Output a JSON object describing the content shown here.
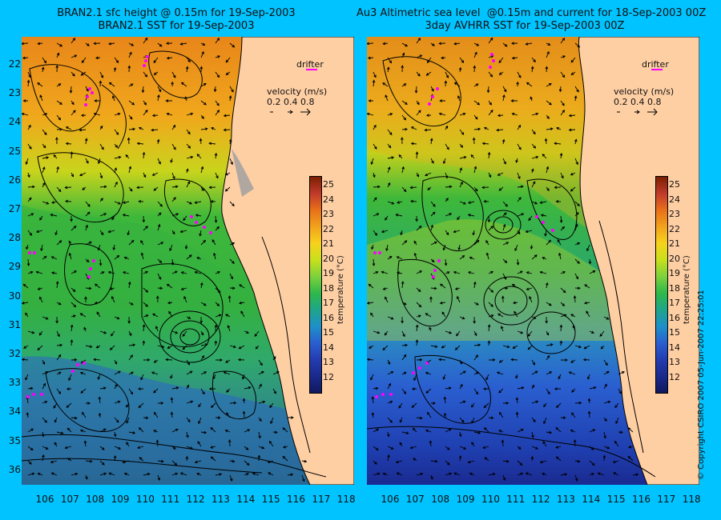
{
  "left_panel": {
    "title_line1": "BRAN2.1 sfc height @ 0.15m for 19-Sep-2003",
    "title_line2": "BRAN2.1 SST for 19-Sep-2003"
  },
  "right_panel": {
    "title_line1": "Au3 Altimetric sea level  @0.15m and current for 18-Sep-2003 00Z",
    "title_line2": "3day AVHRR SST for 19-Sep-2003 00Z"
  },
  "legend": {
    "drifter_label": "drifter",
    "velocity_label": "velocity (m/s)",
    "velocity_values": "0.2  0.4  0.8"
  },
  "colorbar": {
    "title": "temperature (°C)",
    "ticks": [
      "25",
      "24",
      "23",
      "22",
      "21",
      "20",
      "19",
      "18",
      "17",
      "16",
      "15",
      "14",
      "13",
      "12"
    ],
    "colors": [
      "#7a1f00",
      "#c0392b",
      "#e8701a",
      "#f2a21c",
      "#f7d21c",
      "#c8e01c",
      "#7dd13c",
      "#2fb84a",
      "#1fa58a",
      "#1e90c8",
      "#2a5fd0",
      "#243cb0",
      "#1a2a8c",
      "#10185e"
    ]
  },
  "axes": {
    "y_ticks": [
      "22",
      "23",
      "24",
      "25",
      "26",
      "27",
      "28",
      "29",
      "30",
      "31",
      "32",
      "33",
      "34",
      "35",
      "36"
    ],
    "x_ticks": [
      "106",
      "107",
      "108",
      "109",
      "110",
      "111",
      "112",
      "113",
      "114",
      "115",
      "116",
      "117",
      "118"
    ]
  },
  "copyright": "© Copyright CSIRO 2007   05-Jun-2007 22:25:01"
}
